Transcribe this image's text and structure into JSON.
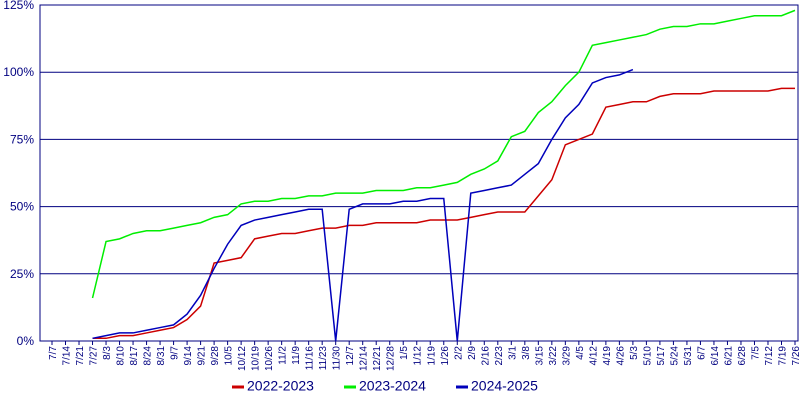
{
  "chart_data": {
    "type": "line",
    "categories": [
      "7/7",
      "7/14",
      "7/21",
      "7/27",
      "8/3",
      "8/10",
      "8/17",
      "8/24",
      "8/31",
      "9/7",
      "9/14",
      "9/21",
      "9/28",
      "10/5",
      "10/12",
      "10/19",
      "10/26",
      "11/2",
      "11/9",
      "11/16",
      "11/23",
      "11/30",
      "12/7",
      "12/14",
      "12/21",
      "12/28",
      "1/5",
      "1/12",
      "1/19",
      "1/26",
      "2/2",
      "2/9",
      "2/16",
      "2/23",
      "3/1",
      "3/8",
      "3/15",
      "3/22",
      "3/29",
      "4/5",
      "4/12",
      "4/19",
      "4/26",
      "5/3",
      "5/10",
      "5/17",
      "5/24",
      "5/31",
      "6/7",
      "6/14",
      "6/21",
      "6/28",
      "7/5",
      "7/12",
      "7/19",
      "7/26"
    ],
    "series": [
      {
        "name": "2022-2023",
        "color": "#cc0000",
        "values": [
          null,
          null,
          null,
          1,
          1,
          2,
          2,
          3,
          4,
          5,
          8,
          13,
          29,
          30,
          31,
          38,
          39,
          40,
          40,
          41,
          42,
          42,
          43,
          43,
          44,
          44,
          44,
          44,
          45,
          45,
          45,
          46,
          47,
          48,
          48,
          48,
          54,
          60,
          73,
          75,
          77,
          87,
          88,
          89,
          89,
          91,
          92,
          92,
          92,
          93,
          93,
          93,
          93,
          93,
          94,
          94
        ]
      },
      {
        "name": "2023-2024",
        "color": "#00ee00",
        "values": [
          null,
          null,
          null,
          16,
          37,
          38,
          40,
          41,
          41,
          42,
          43,
          44,
          46,
          47,
          51,
          52,
          52,
          53,
          53,
          54,
          54,
          55,
          55,
          55,
          56,
          56,
          56,
          57,
          57,
          58,
          59,
          62,
          64,
          67,
          76,
          78,
          85,
          89,
          95,
          100,
          110,
          111,
          112,
          113,
          114,
          116,
          117,
          117,
          118,
          118,
          119,
          120,
          121,
          121,
          121,
          123
        ]
      },
      {
        "name": "2024-2025",
        "color": "#0000bb",
        "values": [
          null,
          null,
          null,
          1,
          2,
          3,
          3,
          4,
          5,
          6,
          10,
          17,
          27,
          36,
          43,
          45,
          46,
          47,
          48,
          49,
          49,
          0,
          49,
          51,
          51,
          51,
          52,
          52,
          53,
          53,
          0,
          55,
          56,
          57,
          58,
          62,
          66,
          75,
          83,
          88,
          96,
          98,
          99,
          101,
          null,
          null,
          null,
          null,
          null,
          null,
          null,
          null,
          null,
          null,
          null,
          null
        ]
      }
    ],
    "ylim": [
      0,
      125
    ],
    "yticks": [
      {
        "value": 0,
        "label": "0%"
      },
      {
        "value": 25,
        "label": "25%"
      },
      {
        "value": 50,
        "label": "50%"
      },
      {
        "value": 75,
        "label": "75%"
      },
      {
        "value": 100,
        "label": "100%"
      },
      {
        "value": 125,
        "label": "125%"
      }
    ],
    "grid": true,
    "legend": "bottom"
  }
}
